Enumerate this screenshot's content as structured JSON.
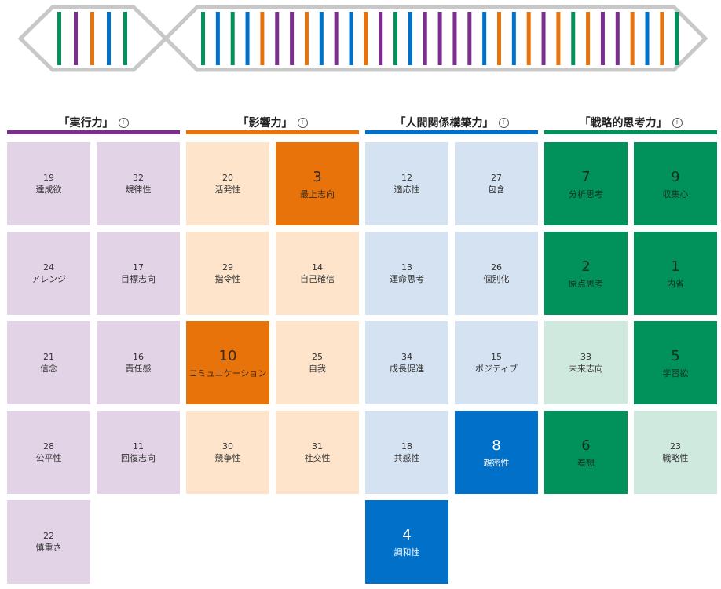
{
  "colors": {
    "execution": "#7b2e8e",
    "influence": "#e8730b",
    "relationship": "#0070c8",
    "strategic": "#00925a",
    "dna_outline": "#c8c8c8"
  },
  "dna_strip": {
    "left_strands": [
      "strategic",
      "execution",
      "influence",
      "relationship",
      "strategic"
    ],
    "right_strands": [
      "strategic",
      "relationship",
      "strategic",
      "relationship",
      "influence",
      "execution",
      "execution",
      "influence",
      "relationship",
      "execution",
      "relationship",
      "influence",
      "execution",
      "strategic",
      "relationship",
      "execution",
      "execution",
      "execution",
      "execution",
      "relationship",
      "influence",
      "relationship",
      "influence",
      "execution",
      "influence",
      "strategic",
      "influence",
      "execution",
      "execution",
      "influence",
      "relationship",
      "influence",
      "strategic"
    ]
  },
  "domains": [
    {
      "key": "execution",
      "title": "「実行力」",
      "info_icon": "info-icon",
      "colors": {
        "light": "#e2d3e6",
        "dark": "#7b2e8e",
        "text_light": "#333333"
      },
      "themes": [
        {
          "rank": "19",
          "name": "達成欲",
          "top": false
        },
        {
          "rank": "32",
          "name": "規律性",
          "top": false
        },
        {
          "rank": "24",
          "name": "アレンジ",
          "top": false
        },
        {
          "rank": "17",
          "name": "目標志向",
          "top": false
        },
        {
          "rank": "21",
          "name": "信念",
          "top": false
        },
        {
          "rank": "16",
          "name": "責任感",
          "top": false
        },
        {
          "rank": "28",
          "name": "公平性",
          "top": false
        },
        {
          "rank": "11",
          "name": "回復志向",
          "top": false
        },
        {
          "rank": "22",
          "name": "慎重さ",
          "top": false
        }
      ]
    },
    {
      "key": "influence",
      "title": "「影響力」",
      "info_icon": "info-icon",
      "colors": {
        "light": "#fde4cb",
        "dark": "#e8730b",
        "text_light": "#333333"
      },
      "themes": [
        {
          "rank": "20",
          "name": "活発性",
          "top": false
        },
        {
          "rank": "3",
          "name": "最上志向",
          "top": true
        },
        {
          "rank": "29",
          "name": "指令性",
          "top": false
        },
        {
          "rank": "14",
          "name": "自己確信",
          "top": false
        },
        {
          "rank": "10",
          "name": "コミュニケーション",
          "top": true
        },
        {
          "rank": "25",
          "name": "自我",
          "top": false
        },
        {
          "rank": "30",
          "name": "競争性",
          "top": false
        },
        {
          "rank": "31",
          "name": "社交性",
          "top": false
        }
      ]
    },
    {
      "key": "relationship",
      "title": "「人間関係構築力」",
      "info_icon": "info-icon",
      "colors": {
        "light": "#d5e2f1",
        "dark": "#0070c8",
        "text_light": "#333333"
      },
      "themes": [
        {
          "rank": "12",
          "name": "適応性",
          "top": false
        },
        {
          "rank": "27",
          "name": "包含",
          "top": false
        },
        {
          "rank": "13",
          "name": "運命思考",
          "top": false
        },
        {
          "rank": "26",
          "name": "個別化",
          "top": false
        },
        {
          "rank": "34",
          "name": "成長促進",
          "top": false
        },
        {
          "rank": "15",
          "name": "ポジティブ",
          "top": false
        },
        {
          "rank": "18",
          "name": "共感性",
          "top": false
        },
        {
          "rank": "8",
          "name": "親密性",
          "top": true
        },
        {
          "rank": "4",
          "name": "調和性",
          "top": true
        }
      ]
    },
    {
      "key": "strategic",
      "title": "「戦略的思考力」",
      "info_icon": "info-icon",
      "colors": {
        "light": "#cfe9df",
        "dark": "#00925a",
        "text_light": "#333333"
      },
      "themes": [
        {
          "rank": "7",
          "name": "分析思考",
          "top": true
        },
        {
          "rank": "9",
          "name": "収集心",
          "top": true
        },
        {
          "rank": "2",
          "name": "原点思考",
          "top": true
        },
        {
          "rank": "1",
          "name": "内省",
          "top": true
        },
        {
          "rank": "33",
          "name": "未来志向",
          "top": false
        },
        {
          "rank": "5",
          "name": "学習欲",
          "top": true
        },
        {
          "rank": "6",
          "name": "着想",
          "top": true
        },
        {
          "rank": "23",
          "name": "戦略性",
          "top": false
        }
      ]
    }
  ]
}
